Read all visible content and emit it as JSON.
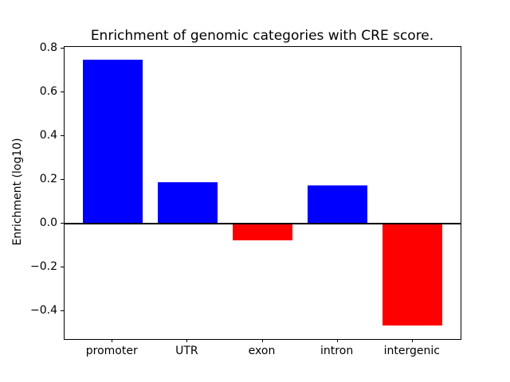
{
  "figure": {
    "title": "Enrichment of genomic categories with CRE score.",
    "ylabel": "Enrichment (log10)",
    "xlabel": "",
    "background_color": "#ffffff",
    "text_color": "#000000"
  },
  "chart_data": {
    "type": "bar",
    "title": "Enrichment of genomic categories with CRE score.",
    "xlabel": "",
    "ylabel": "Enrichment (log10)",
    "categories": [
      "promoter",
      "UTR",
      "exon",
      "intron",
      "intergenic"
    ],
    "values": [
      0.75,
      0.19,
      -0.075,
      0.175,
      -0.465
    ],
    "bar_colors": [
      "#0000ff",
      "#0000ff",
      "#ff0000",
      "#0000ff",
      "#ff0000"
    ],
    "positive_color": "#0000ff",
    "negative_color": "#ff0000",
    "zero_line": true,
    "zero_line_color": "#000000",
    "grid": false,
    "legend": "none",
    "ylim": [
      -0.527,
      0.807
    ],
    "xlim": [
      -0.64,
      4.64
    ],
    "bar_width": 0.8,
    "yticks": [
      -0.4,
      -0.2,
      0.0,
      0.2,
      0.4,
      0.6,
      0.8
    ],
    "ytick_labels": [
      "−0.4",
      "−0.2",
      "0.0",
      "0.2",
      "0.4",
      "0.6",
      "0.8"
    ]
  }
}
